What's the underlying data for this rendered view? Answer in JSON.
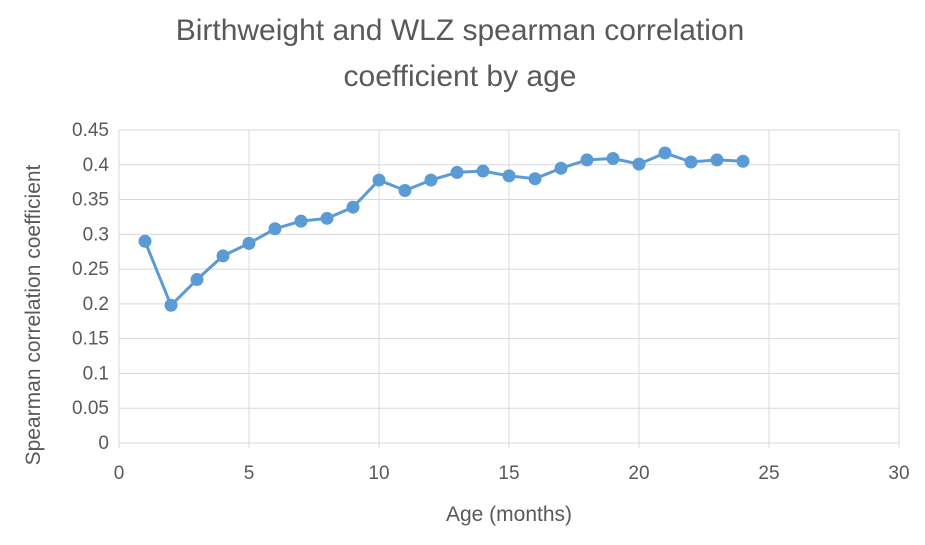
{
  "chart_data": {
    "type": "scatter",
    "title_lines": [
      "Birthweight and WLZ spearman correlation",
      "coefficient by age"
    ],
    "xlabel": "Age (months)",
    "ylabel": "Spearman correlation coefficient",
    "xlim": [
      0,
      30
    ],
    "ylim": [
      0,
      0.45
    ],
    "x_ticks": [
      0,
      5,
      10,
      15,
      20,
      25,
      30
    ],
    "y_ticks": [
      "0",
      "0.05",
      "0.1",
      "0.15",
      "0.2",
      "0.25",
      "0.3",
      "0.35",
      "0.4",
      "0.45"
    ],
    "grid": true,
    "legend": "none",
    "series": [
      {
        "color": "#5b9bd5",
        "x": [
          1,
          2,
          3,
          4,
          5,
          6,
          7,
          8,
          9,
          10,
          11,
          12,
          13,
          14,
          15,
          16,
          17,
          18,
          19,
          20,
          21,
          22,
          23,
          24
        ],
        "y": [
          0.29,
          0.198,
          0.235,
          0.269,
          0.287,
          0.308,
          0.319,
          0.323,
          0.339,
          0.378,
          0.363,
          0.378,
          0.389,
          0.391,
          0.384,
          0.38,
          0.395,
          0.407,
          0.409,
          0.401,
          0.417,
          0.404,
          0.407,
          0.405
        ]
      }
    ]
  }
}
